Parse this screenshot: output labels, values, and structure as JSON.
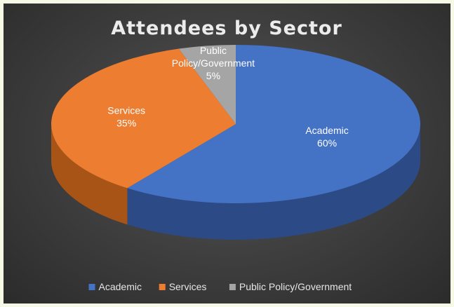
{
  "chart_data": {
    "type": "pie",
    "title": "Attendees by Sector",
    "categories": [
      "Academic",
      "Services",
      "Public Policy/Government"
    ],
    "values": [
      60,
      35,
      5
    ],
    "colors": [
      "#4472c4",
      "#ed7d31",
      "#a5a5a5"
    ],
    "side_colors": [
      "#2b4a86",
      "#a85416",
      "#6f6f6f"
    ],
    "slice_labels": [
      {
        "lines": [
          "Academic",
          "60%"
        ]
      },
      {
        "lines": [
          "Services",
          "35%"
        ]
      },
      {
        "lines": [
          "Public",
          "Policy/Government",
          "5%"
        ]
      }
    ],
    "legend": {
      "position": "bottom",
      "entries": [
        "Academic",
        "Services",
        "Public Policy/Government"
      ]
    },
    "style": "3d"
  }
}
